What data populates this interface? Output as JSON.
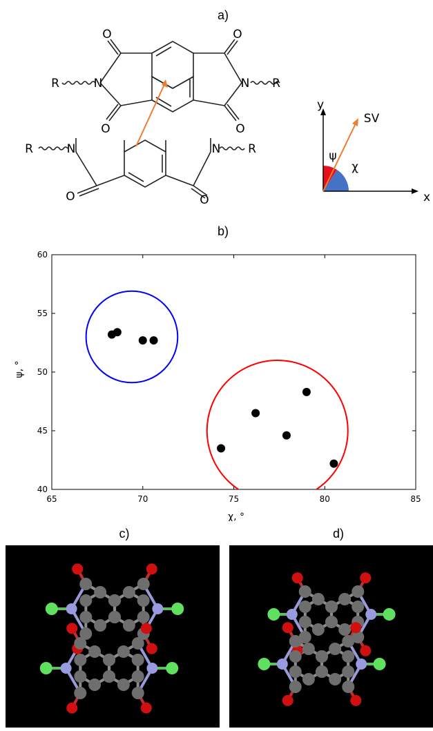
{
  "panel_labels": {
    "a": "a)",
    "b": "b)",
    "c": "c)",
    "d": "d)"
  },
  "structure": {
    "atom_o": "O",
    "atom_n": "N",
    "substituent_r": "R"
  },
  "vector_diagram": {
    "y_axis": "y",
    "x_axis": "x",
    "vector": "SV",
    "psi": "ψ",
    "chi": "χ",
    "colors": {
      "psi_wedge": "#e8111b",
      "chi_wedge": "#4472c4",
      "vector": "#ed7d31"
    }
  },
  "chart_data": {
    "type": "scatter",
    "xlabel": "χ, °",
    "ylabel": "ψ, °",
    "xlim": [
      65,
      85
    ],
    "ylim": [
      40,
      60
    ],
    "xticks": [
      65,
      70,
      75,
      80,
      85
    ],
    "yticks": [
      40,
      45,
      50,
      55,
      60
    ],
    "points": [
      {
        "x": 68.3,
        "y": 53.2
      },
      {
        "x": 68.6,
        "y": 53.4
      },
      {
        "x": 70.0,
        "y": 52.7
      },
      {
        "x": 70.6,
        "y": 52.7
      },
      {
        "x": 74.3,
        "y": 43.5
      },
      {
        "x": 76.2,
        "y": 46.5
      },
      {
        "x": 77.9,
        "y": 44.6
      },
      {
        "x": 79.0,
        "y": 48.3
      },
      {
        "x": 80.5,
        "y": 42.2
      }
    ],
    "clusters": [
      {
        "color": "#0000ff",
        "center": [
          69.4,
          53.0
        ],
        "radius_y": 3.9
      },
      {
        "color": "#ff0000",
        "center": [
          77.4,
          45.0
        ],
        "radius_y": 6.0
      }
    ],
    "point_color": "#000000",
    "grid": false
  }
}
